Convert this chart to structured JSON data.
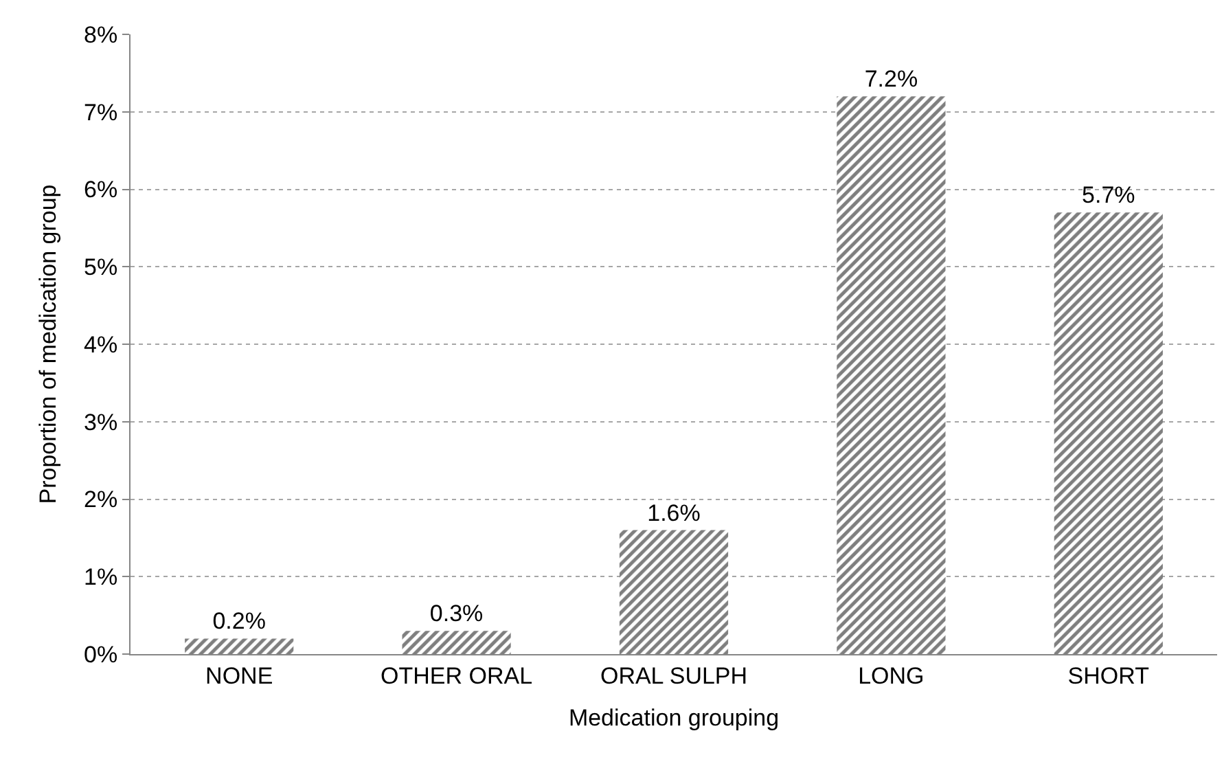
{
  "chart_data": {
    "type": "bar",
    "xlabel": "Medication grouping",
    "ylabel": "Proportion of medication group",
    "categories": [
      "NONE",
      "OTHER ORAL",
      "ORAL SULPH",
      "LONG",
      "SHORT"
    ],
    "values": [
      0.2,
      0.3,
      1.6,
      7.2,
      5.7
    ],
    "value_labels": [
      "0.2%",
      "0.3%",
      "1.6%",
      "7.2%",
      "5.7%"
    ],
    "color": "#000000",
    "ylim": [
      0,
      8
    ],
    "yticks": [
      {
        "value": 0,
        "label": "0%"
      },
      {
        "value": 1,
        "label": "1%"
      },
      {
        "value": 2,
        "label": "2%"
      },
      {
        "value": 3,
        "label": "3%"
      },
      {
        "value": 4,
        "label": "4%"
      },
      {
        "value": 5,
        "label": "5%"
      },
      {
        "value": 6,
        "label": "6%"
      },
      {
        "value": 7,
        "label": "7%"
      },
      {
        "value": 8,
        "label": "8%"
      }
    ],
    "grid": "y"
  }
}
